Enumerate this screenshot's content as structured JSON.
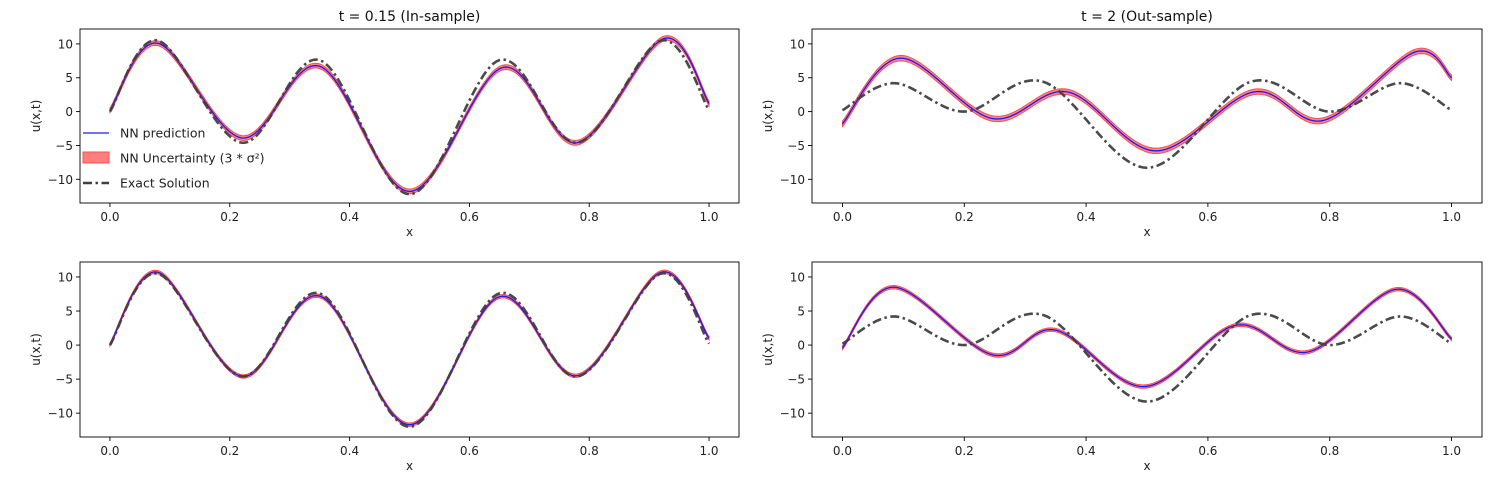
{
  "chart_data": [
    {
      "type": "line",
      "title": "t = 0.15 (In-sample)",
      "xlabel": "x",
      "ylabel": "u(x,t)",
      "xlim": [
        -0.05,
        1.05
      ],
      "ylim": [
        -13.5,
        12.2
      ],
      "xticks": [
        "0.0",
        "0.2",
        "0.4",
        "0.6",
        "0.8",
        "1.0"
      ],
      "xtick_values": [
        0,
        0.2,
        0.4,
        0.6,
        0.8,
        1.0
      ],
      "yticks": [
        "−10",
        "−5",
        "0",
        "5",
        "10"
      ],
      "ytick_values": [
        -10,
        -5,
        0,
        5,
        10
      ],
      "grid": false,
      "legend": {
        "position": "center-left",
        "entries": [
          "NN prediction",
          "NN Uncertainty (3 * σ²)",
          "Exact Solution"
        ]
      },
      "series": [
        {
          "name": "Exact Solution",
          "style": "dashdot",
          "color": "#404040",
          "x": [
            0.0,
            0.08,
            0.22,
            0.35,
            0.5,
            0.65,
            0.78,
            0.92,
            1.0
          ],
          "y": [
            0.0,
            10.5,
            -4.6,
            7.6,
            -12.2,
            7.6,
            -4.6,
            10.5,
            0.2
          ]
        },
        {
          "name": "NN prediction",
          "style": "solid",
          "color": "#1a1aff",
          "x": [
            0.0,
            0.08,
            0.22,
            0.35,
            0.5,
            0.655,
            0.78,
            0.925,
            1.0
          ],
          "y": [
            0.2,
            10.1,
            -3.9,
            6.7,
            -11.8,
            6.5,
            -4.6,
            10.8,
            1.2
          ]
        },
        {
          "name": "NN Uncertainty (3 * σ²)",
          "style": "band",
          "color": "#ff6f6f",
          "x": [
            0.0,
            0.08,
            0.22,
            0.35,
            0.5,
            0.655,
            0.78,
            0.925,
            1.0
          ],
          "y": [
            0.2,
            10.1,
            -3.9,
            6.7,
            -11.8,
            6.5,
            -4.6,
            10.8,
            1.2
          ],
          "spread": 0.35
        }
      ]
    },
    {
      "type": "line",
      "title": "t = 2 (Out-sample)",
      "xlabel": "x",
      "ylabel": "u(x,t)",
      "xlim": [
        -0.05,
        1.05
      ],
      "ylim": [
        -13.5,
        12.2
      ],
      "xticks": [
        "0.0",
        "0.2",
        "0.4",
        "0.6",
        "0.8",
        "1.0"
      ],
      "xtick_values": [
        0,
        0.2,
        0.4,
        0.6,
        0.8,
        1.0
      ],
      "yticks": [
        "−10",
        "−5",
        "0",
        "5",
        "10"
      ],
      "ytick_values": [
        -10,
        -5,
        0,
        5,
        10
      ],
      "grid": false,
      "series": [
        {
          "name": "Exact Solution",
          "style": "dashdot",
          "color": "#404040",
          "x": [
            0.0,
            0.085,
            0.2,
            0.33,
            0.5,
            0.67,
            0.8,
            0.915,
            1.0
          ],
          "y": [
            0.2,
            4.2,
            0.0,
            4.4,
            -8.3,
            4.4,
            0.0,
            4.2,
            0.2
          ]
        },
        {
          "name": "NN prediction",
          "style": "solid",
          "color": "#1a1aff",
          "x": [
            0.0,
            0.095,
            0.245,
            0.37,
            0.515,
            0.675,
            0.79,
            0.94,
            1.0
          ],
          "y": [
            -1.8,
            7.9,
            -1.0,
            2.9,
            -5.8,
            2.9,
            -1.3,
            8.8,
            5.0
          ]
        },
        {
          "name": "NN Uncertainty (3 * σ²)",
          "style": "band",
          "color": "#ff6f6f",
          "x": [
            0.0,
            0.095,
            0.245,
            0.37,
            0.515,
            0.675,
            0.79,
            0.94,
            1.0
          ],
          "y": [
            -1.8,
            7.9,
            -1.0,
            2.9,
            -5.8,
            2.9,
            -1.3,
            8.8,
            5.0
          ],
          "spread": 0.4
        }
      ]
    },
    {
      "type": "line",
      "title": "",
      "xlabel": "x",
      "ylabel": "u(x,t)",
      "xlim": [
        -0.05,
        1.05
      ],
      "ylim": [
        -13.5,
        12.2
      ],
      "xticks": [
        "0.0",
        "0.2",
        "0.4",
        "0.6",
        "0.8",
        "1.0"
      ],
      "xtick_values": [
        0,
        0.2,
        0.4,
        0.6,
        0.8,
        1.0
      ],
      "yticks": [
        "−10",
        "−5",
        "0",
        "5",
        "10"
      ],
      "ytick_values": [
        -10,
        -5,
        0,
        5,
        10
      ],
      "grid": false,
      "series": [
        {
          "name": "Exact Solution",
          "style": "dashdot",
          "color": "#404040",
          "x": [
            0.0,
            0.08,
            0.22,
            0.35,
            0.5,
            0.65,
            0.78,
            0.92,
            1.0
          ],
          "y": [
            0.0,
            10.5,
            -4.6,
            7.6,
            -12.0,
            7.6,
            -4.6,
            10.5,
            0.2
          ]
        },
        {
          "name": "NN prediction",
          "style": "solid",
          "color": "#1a1aff",
          "x": [
            0.0,
            0.08,
            0.22,
            0.35,
            0.5,
            0.65,
            0.78,
            0.92,
            1.0
          ],
          "y": [
            0.1,
            10.7,
            -4.6,
            7.2,
            -11.7,
            7.1,
            -4.5,
            10.7,
            1.0
          ]
        },
        {
          "name": "NN Uncertainty (3 * σ²)",
          "style": "band",
          "color": "#ff6f6f",
          "x": [
            0.0,
            0.08,
            0.22,
            0.35,
            0.5,
            0.65,
            0.78,
            0.92,
            1.0
          ],
          "y": [
            0.1,
            10.7,
            -4.6,
            7.2,
            -11.7,
            7.1,
            -4.5,
            10.7,
            1.0
          ],
          "spread": 0.25
        }
      ]
    },
    {
      "type": "line",
      "title": "",
      "xlabel": "x",
      "ylabel": "u(x,t)",
      "xlim": [
        -0.05,
        1.05
      ],
      "ylim": [
        -13.5,
        12.2
      ],
      "xticks": [
        "0.0",
        "0.2",
        "0.4",
        "0.6",
        "0.8",
        "1.0"
      ],
      "xtick_values": [
        0,
        0.2,
        0.4,
        0.6,
        0.8,
        1.0
      ],
      "yticks": [
        "−10",
        "−5",
        "0",
        "5",
        "10"
      ],
      "ytick_values": [
        -10,
        -5,
        0,
        5,
        10
      ],
      "grid": false,
      "series": [
        {
          "name": "Exact Solution",
          "style": "dashdot",
          "color": "#404040",
          "x": [
            0.0,
            0.085,
            0.2,
            0.33,
            0.5,
            0.67,
            0.8,
            0.915,
            1.0
          ],
          "y": [
            0.2,
            4.2,
            0.0,
            4.4,
            -8.3,
            4.4,
            0.0,
            4.2,
            0.2
          ]
        },
        {
          "name": "NN prediction",
          "style": "solid",
          "color": "#1a1aff",
          "x": [
            0.0,
            0.085,
            0.245,
            0.35,
            0.495,
            0.645,
            0.765,
            0.91,
            1.0
          ],
          "y": [
            -0.4,
            8.5,
            -1.4,
            2.2,
            -6.1,
            2.9,
            -1.0,
            8.2,
            0.9
          ]
        },
        {
          "name": "NN Uncertainty (3 * σ²)",
          "style": "band",
          "color": "#ff6f6f",
          "x": [
            0.0,
            0.085,
            0.245,
            0.35,
            0.495,
            0.645,
            0.765,
            0.91,
            1.0
          ],
          "y": [
            -0.4,
            8.5,
            -1.4,
            2.2,
            -6.1,
            2.9,
            -1.0,
            8.2,
            0.9
          ],
          "spread": 0.25
        }
      ]
    }
  ]
}
